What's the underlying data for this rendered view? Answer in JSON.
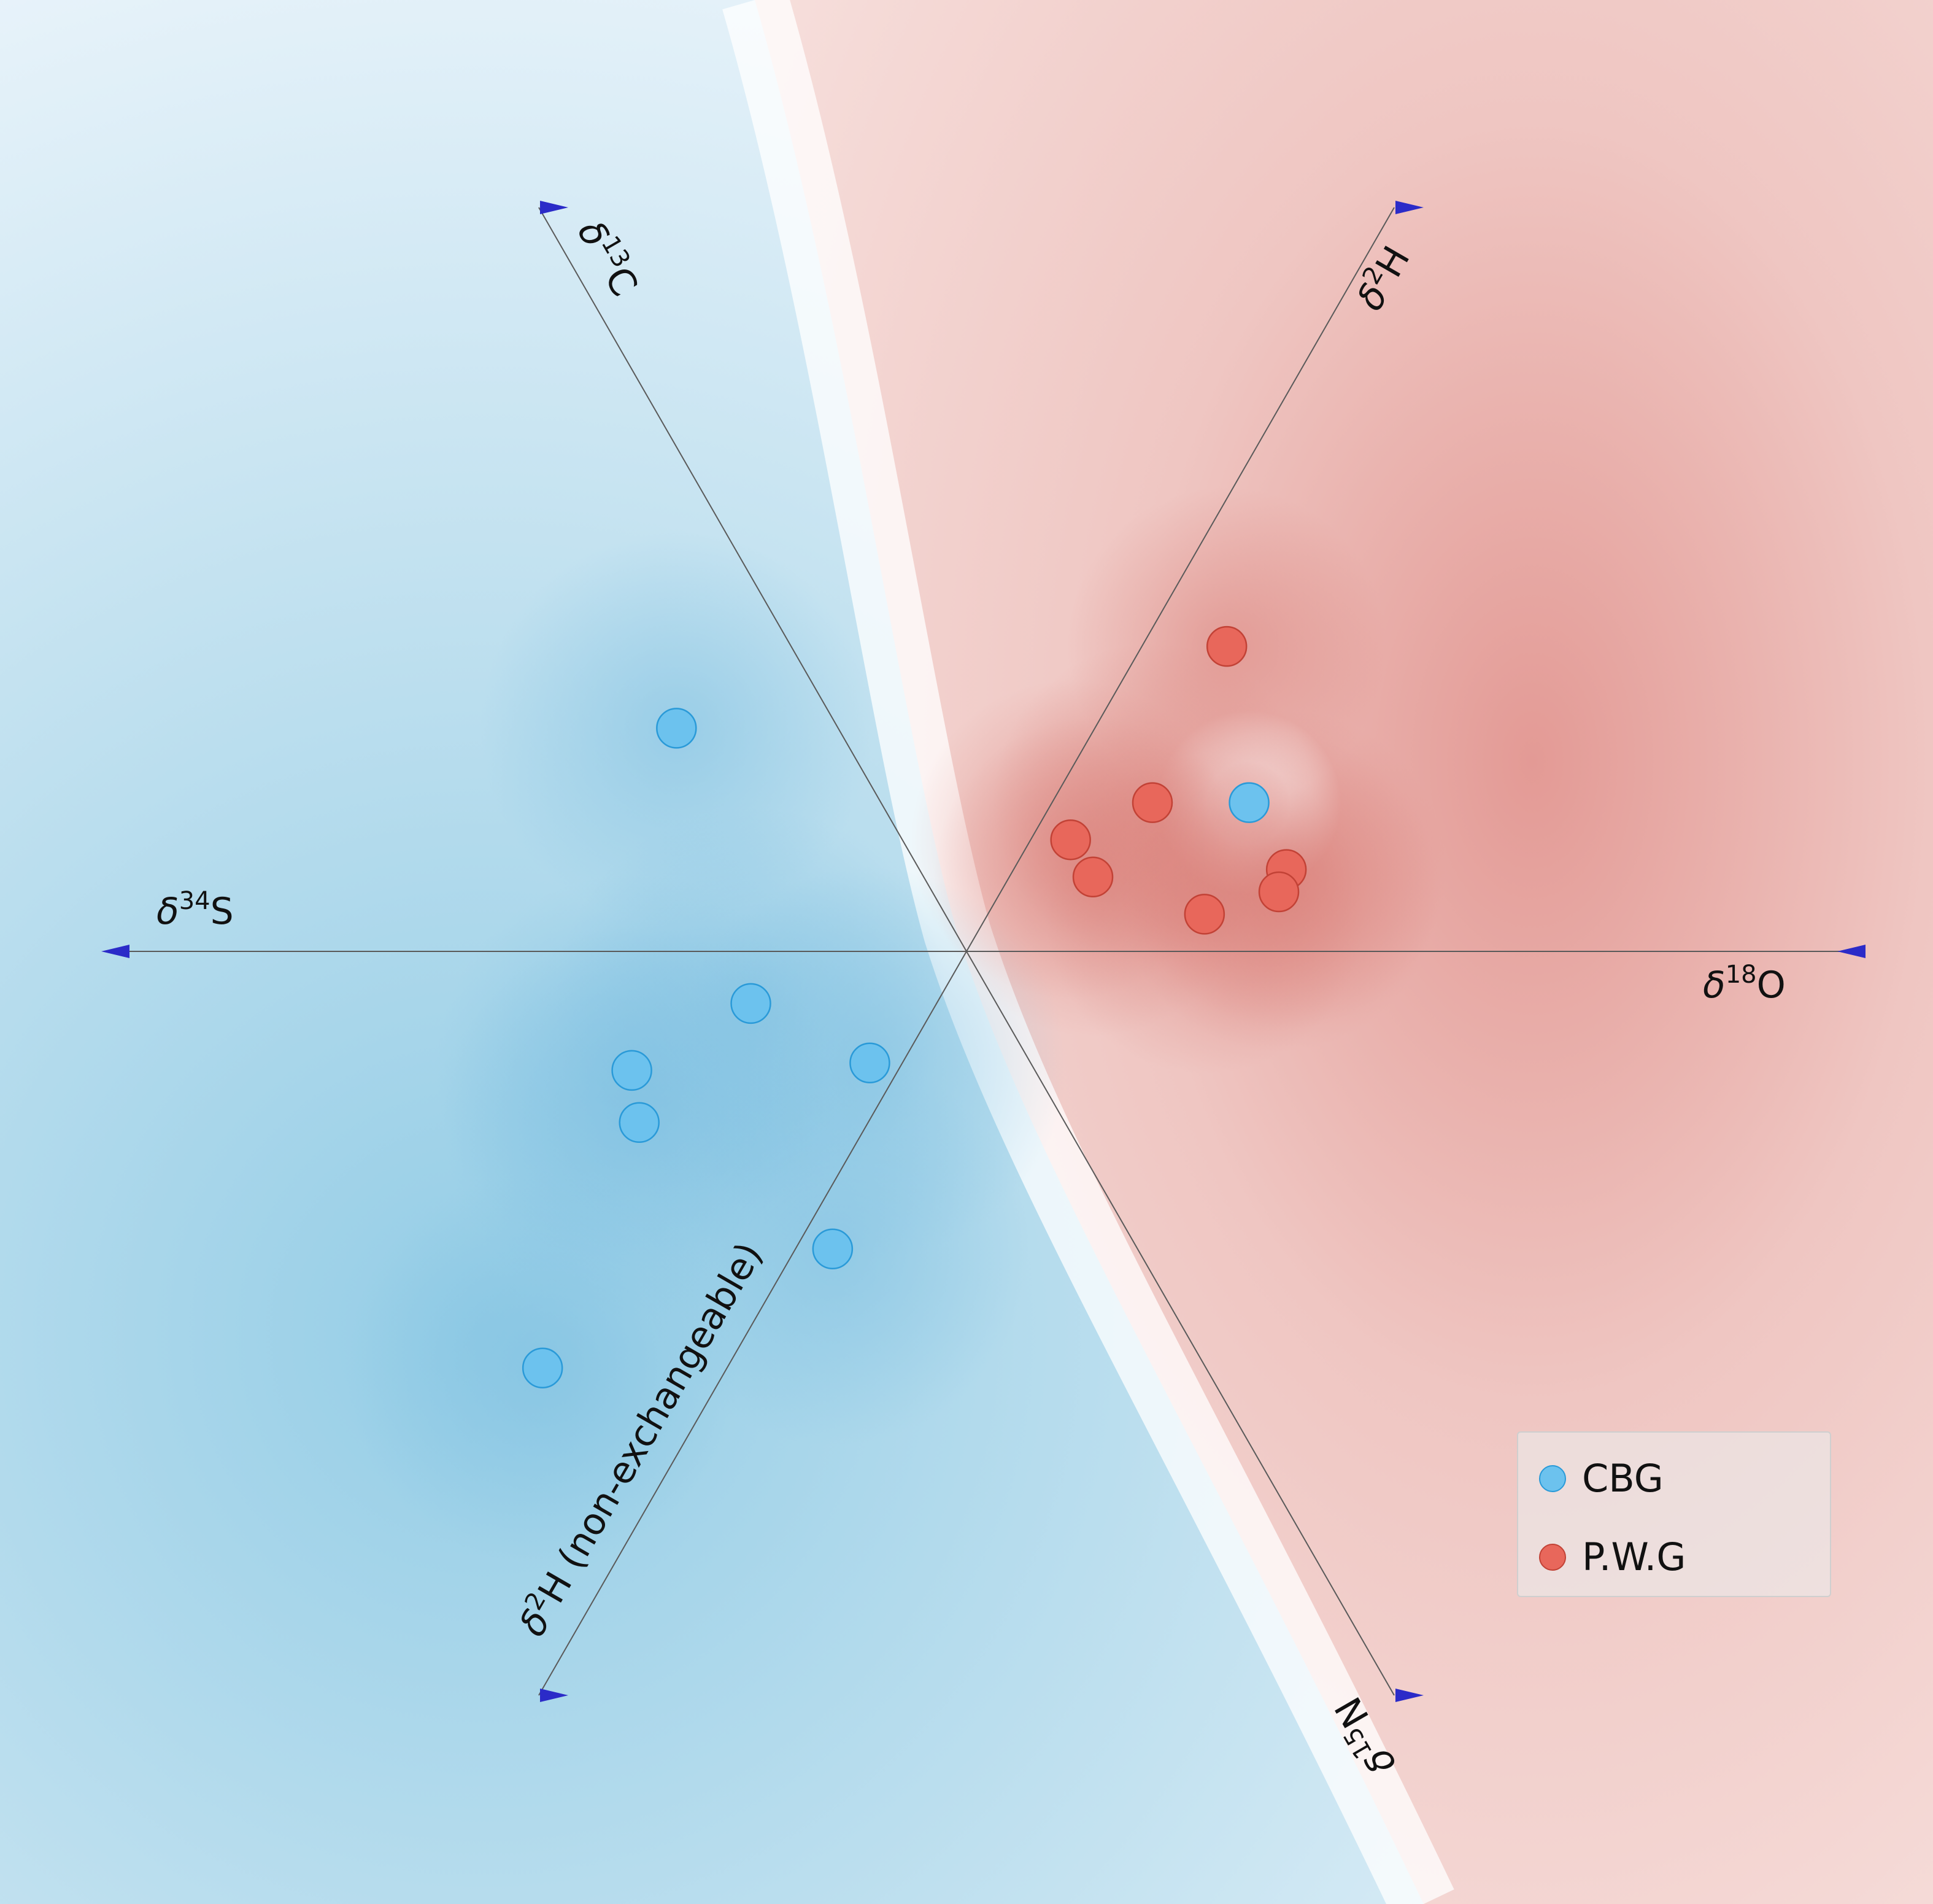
{
  "chart_data": {
    "type": "scatter",
    "title": "",
    "axes": [
      {
        "name": "d34S",
        "label_main": "δ",
        "label_sup": "34",
        "label_rest": "S"
      },
      {
        "name": "d18O",
        "label_main": "δ",
        "label_sup": "18",
        "label_rest": "O"
      },
      {
        "name": "d13C",
        "label_main": "δ",
        "label_sup": "13",
        "label_rest": "C"
      },
      {
        "name": "d2H",
        "label_main": "δ",
        "label_sup": "2",
        "label_rest": "H"
      },
      {
        "name": "d15N",
        "label_main": "δ",
        "label_sup": "15",
        "label_rest": "N"
      },
      {
        "name": "d2H_nonex",
        "label_main": "δ",
        "label_sup": "2",
        "label_rest": "H (non-exchangeable)"
      }
    ],
    "projection": {
      "x_range": [
        -1.0,
        1.0
      ],
      "y_range": [
        -1.0,
        1.0
      ]
    },
    "background": "decision-region shading: blue for CBG, red for P.W.G",
    "series": [
      {
        "name": "CBG",
        "color": "#6cc2ee",
        "x": [
          -0.39,
          -0.29,
          -0.45,
          -0.44,
          -0.13,
          -0.18,
          -0.57,
          0.38
        ],
        "y": [
          0.3,
          -0.07,
          -0.16,
          -0.23,
          -0.15,
          -0.4,
          -0.56,
          0.2
        ]
      },
      {
        "name": "P.W.G",
        "color": "#e8675b",
        "x": [
          0.35,
          0.25,
          0.14,
          0.17,
          0.43,
          0.42,
          0.32
        ],
        "y": [
          0.41,
          0.2,
          0.15,
          0.1,
          0.11,
          0.08,
          0.05
        ]
      }
    ],
    "legend": {
      "position": "bottom-right",
      "entries": [
        "CBG",
        "P.W.G"
      ]
    }
  }
}
